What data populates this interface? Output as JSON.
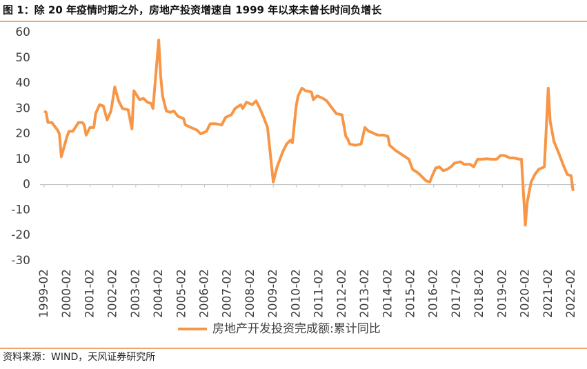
{
  "chart_data": {
    "type": "line",
    "title": "图 1：除 20 年疫情时期之外，房地产投资增速自 1999 年以来未曾长时间负增长",
    "source": "资料来源：WIND，天风证券研究所",
    "x": [
      "1999-02",
      "1999-03",
      "1999-04",
      "1999-06",
      "1999-09",
      "1999-10",
      "1999-11",
      "2000-02",
      "2000-03",
      "2000-05",
      "2000-08",
      "2000-10",
      "2000-11",
      "2000-12",
      "2001-02",
      "2001-04",
      "2001-05",
      "2001-07",
      "2001-09",
      "2001-11",
      "2002-01",
      "2002-03",
      "2002-05",
      "2002-07",
      "2002-10",
      "2002-12",
      "2003-01",
      "2003-04",
      "2003-06",
      "2003-08",
      "2003-10",
      "2003-11",
      "2004-02",
      "2004-03",
      "2004-04",
      "2004-06",
      "2004-08",
      "2004-10",
      "2004-12",
      "2005-03",
      "2005-04",
      "2005-07",
      "2005-10",
      "2005-12",
      "2006-03",
      "2006-05",
      "2006-08",
      "2006-11",
      "2007-01",
      "2007-04",
      "2007-06",
      "2007-09",
      "2007-10",
      "2007-12",
      "2008-03",
      "2008-05",
      "2008-07",
      "2008-09",
      "2008-11",
      "2009-02",
      "2009-03",
      "2009-04",
      "2009-07",
      "2009-09",
      "2009-11",
      "2009-12",
      "2010-02",
      "2010-03",
      "2010-05",
      "2010-07",
      "2010-10",
      "2010-11",
      "2011-01",
      "2011-04",
      "2011-06",
      "2011-08",
      "2011-11",
      "2012-02",
      "2012-04",
      "2012-05",
      "2012-06",
      "2012-09",
      "2012-12",
      "2013-02",
      "2013-04",
      "2013-06",
      "2013-07",
      "2013-09",
      "2013-12",
      "2014-02",
      "2014-03",
      "2014-06",
      "2014-08",
      "2014-11",
      "2015-01",
      "2015-03",
      "2015-06",
      "2015-08",
      "2015-10",
      "2015-12",
      "2016-01",
      "2016-03",
      "2016-05",
      "2016-07",
      "2016-09",
      "2016-11",
      "2017-01",
      "2017-04",
      "2017-06",
      "2017-09",
      "2017-11",
      "2018-01",
      "2018-03",
      "2018-06",
      "2018-08",
      "2018-11",
      "2019-01",
      "2019-03",
      "2019-06",
      "2019-08",
      "2019-11",
      "2019-12",
      "2020-02",
      "2020-03",
      "2020-05",
      "2020-07",
      "2020-09",
      "2020-12",
      "2021-02",
      "2021-03",
      "2021-05",
      "2021-08",
      "2021-10",
      "2021-12",
      "2022-02",
      "2022-03"
    ],
    "series": [
      {
        "name": "房地产开发投资完成额:累计同比",
        "color": "#f79646",
        "values": [
          29,
          28.5,
          24.5,
          24.5,
          21.5,
          20,
          11,
          19,
          21,
          21,
          24.5,
          24.5,
          23.5,
          19.5,
          22.5,
          22.5,
          28,
          31.5,
          31,
          25.5,
          29,
          38.5,
          33,
          30,
          29.5,
          22,
          37,
          33.5,
          34,
          32.5,
          32,
          30,
          57,
          43,
          35,
          29,
          28.5,
          29,
          27,
          26,
          23.5,
          22.5,
          21.5,
          20,
          21,
          24,
          24,
          23.5,
          26.5,
          27.5,
          30,
          31.5,
          30,
          32.5,
          31.5,
          33,
          30,
          26.5,
          22.5,
          1,
          4,
          7,
          13,
          16,
          17.5,
          16.5,
          31,
          35,
          38,
          37,
          36.5,
          33.5,
          35,
          34,
          33,
          31,
          28,
          27.5,
          19,
          18,
          16,
          15.5,
          16,
          22.5,
          21,
          20.5,
          20,
          19.5,
          19.5,
          19,
          15.5,
          13.5,
          12.5,
          11,
          10,
          6,
          4.5,
          3,
          1.5,
          1,
          3,
          6.5,
          7,
          5.5,
          6,
          7,
          8.5,
          9,
          8,
          8,
          7,
          10,
          10,
          10.2,
          10,
          10,
          11.5,
          11.5,
          10.5,
          10.5,
          10,
          10,
          -16,
          -7,
          1,
          4,
          6,
          7,
          38,
          25,
          17,
          11.5,
          7.5,
          4,
          3.5,
          -2.5
        ]
      }
    ],
    "xticks": [
      "1999-02",
      "2000-02",
      "2001-02",
      "2002-02",
      "2003-02",
      "2004-02",
      "2005-02",
      "2006-02",
      "2007-02",
      "2008-02",
      "2009-02",
      "2010-02",
      "2011-02",
      "2012-02",
      "2013-02",
      "2014-02",
      "2015-02",
      "2016-02",
      "2017-02",
      "2018-02",
      "2019-02",
      "2020-02",
      "2021-02",
      "2022-02"
    ],
    "ylim": [
      -30,
      60
    ],
    "yticks": [
      60,
      50,
      40,
      30,
      20,
      10,
      0,
      -10,
      -20,
      -30
    ]
  }
}
